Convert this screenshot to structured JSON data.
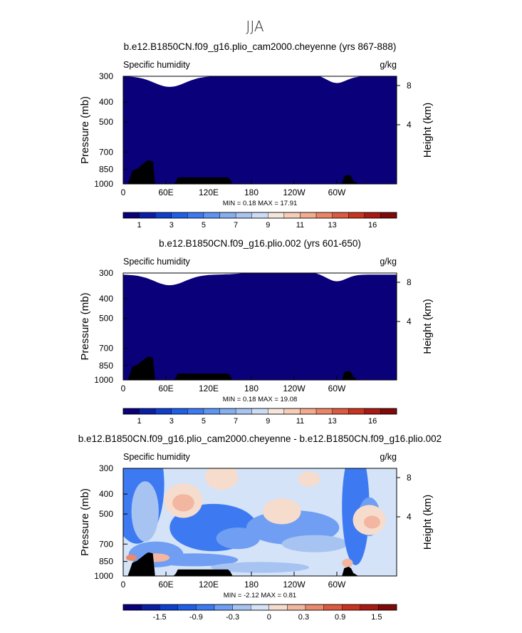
{
  "figure_title": "JJA",
  "colors": {
    "pos_scale": [
      "#0a007a",
      "#0b1ea6",
      "#0f3fcb",
      "#1f5ee6",
      "#3d7af2",
      "#5d95f5",
      "#86aff0",
      "#a8c4f0",
      "#cddcf5",
      "#f4e6dd",
      "#f6cdb8",
      "#f3ab8f",
      "#ea8566",
      "#dc5a3f",
      "#c93420",
      "#a81a14",
      "#800a0a"
    ],
    "diff_scale": [
      "#0a007a",
      "#0b1ea6",
      "#0f3fcb",
      "#1f5ee6",
      "#3d7af2",
      "#6f9ef2",
      "#a6c3f2",
      "#d4e3f7",
      "#f6dccd",
      "#f3b6a0",
      "#e98a6c",
      "#dc5a3f",
      "#c93420",
      "#a81a14",
      "#800a0a"
    ],
    "terrain": "#000000"
  },
  "chart_data": [
    {
      "type": "heatmap",
      "title": "b.e12.B1850CN.f09_g16.plio_cam2000.cheyenne (yrs 867-888)",
      "left_label": "Specific humidity",
      "right_label": "g/kg",
      "ylabel": "Pressure (mb)",
      "ylabel_right": "Height (km)",
      "x_ticks": [
        "0",
        "60E",
        "120E",
        "180",
        "120W",
        "60W"
      ],
      "y_ticks": [
        "300",
        "400",
        "500",
        "700",
        "850",
        "1000"
      ],
      "y_ticks_right": [
        "8",
        "4"
      ],
      "stats": "MIN =    0.18   MAX =   17.91",
      "min": 0.18,
      "max": 17.91,
      "colorbar_ticks": [
        "1",
        "3",
        "5",
        "7",
        "9",
        "11",
        "13",
        "16"
      ]
    },
    {
      "type": "heatmap",
      "title": "b.e12.B1850CN.f09_g16.plio.002 (yrs 601-650)",
      "left_label": "Specific humidity",
      "right_label": "g/kg",
      "ylabel": "Pressure (mb)",
      "ylabel_right": "Height (km)",
      "x_ticks": [
        "0",
        "60E",
        "120E",
        "180",
        "120W",
        "60W"
      ],
      "y_ticks": [
        "300",
        "400",
        "500",
        "700",
        "850",
        "1000"
      ],
      "y_ticks_right": [
        "8",
        "4"
      ],
      "stats": "MIN =    0.18   MAX =   19.08",
      "min": 0.18,
      "max": 19.08,
      "colorbar_ticks": [
        "1",
        "3",
        "5",
        "7",
        "9",
        "11",
        "13",
        "16"
      ]
    },
    {
      "type": "heatmap",
      "title": "b.e12.B1850CN.f09_g16.plio_cam2000.cheyenne - b.e12.B1850CN.f09_g16.plio.002",
      "left_label": "Specific humidity",
      "right_label": "g/kg",
      "ylabel": "Pressure (mb)",
      "ylabel_right": "Height (km)",
      "x_ticks": [
        "0",
        "60E",
        "120E",
        "180",
        "120W",
        "60W"
      ],
      "y_ticks": [
        "300",
        "400",
        "500",
        "700",
        "850",
        "1000"
      ],
      "y_ticks_right": [
        "8",
        "4"
      ],
      "stats": "MIN =   -2.12   MAX =    0.81",
      "min": -2.12,
      "max": 0.81,
      "colorbar_ticks": [
        "-1.5",
        "-0.9",
        "-0.3",
        "0",
        "0.3",
        "0.9",
        "1.5"
      ]
    }
  ]
}
